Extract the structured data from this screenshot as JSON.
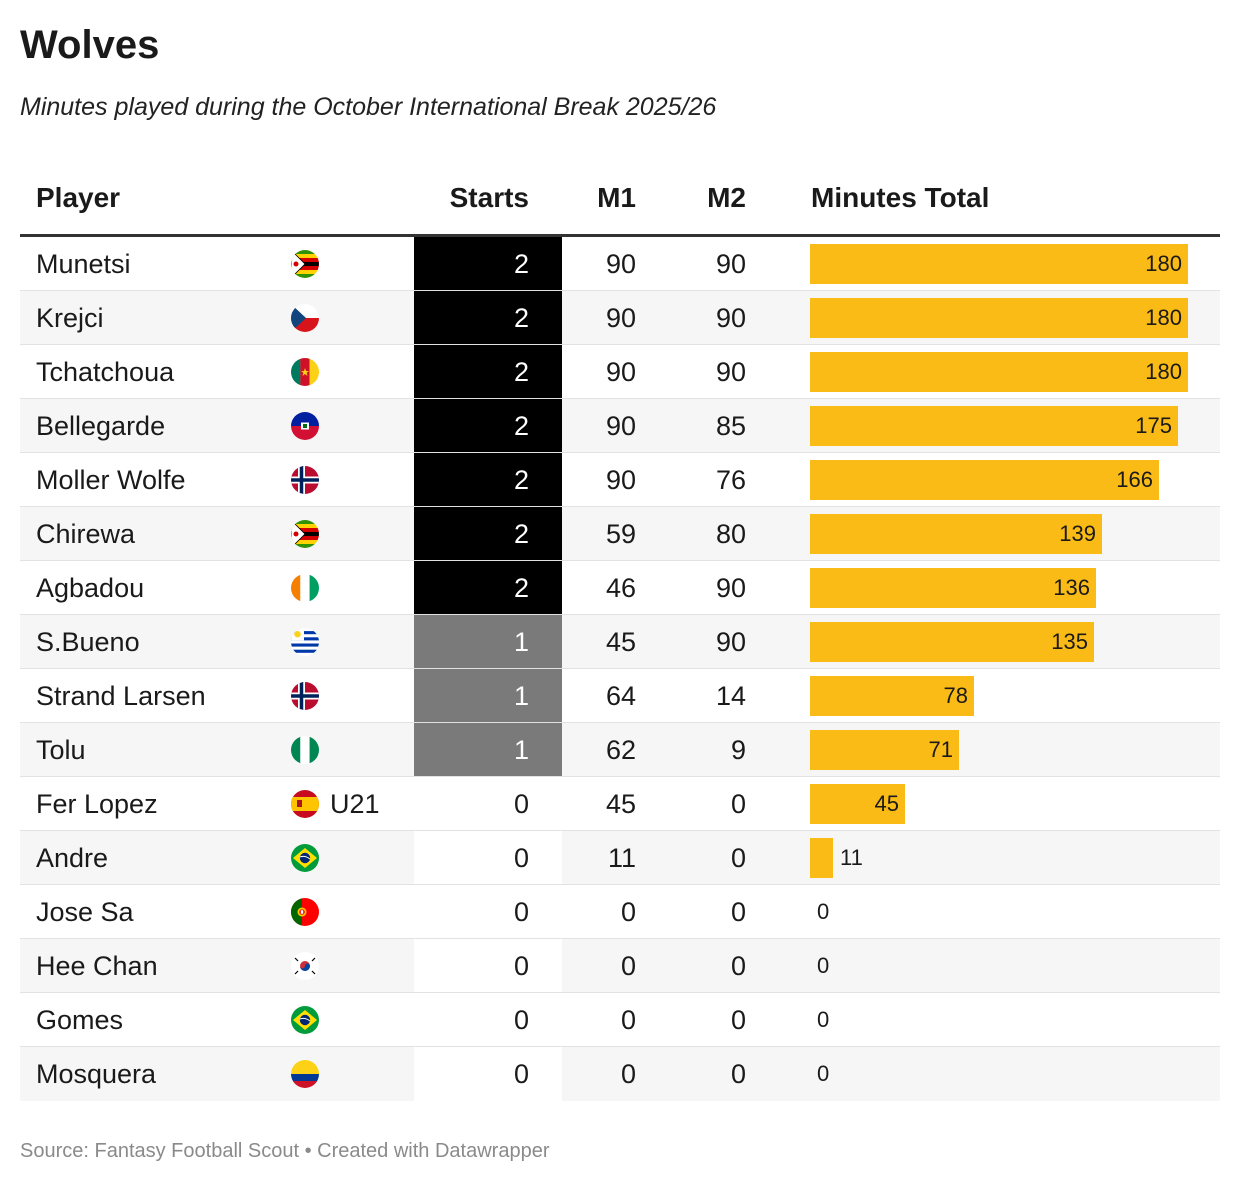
{
  "title": "Wolves",
  "subtitle": "Minutes played during the October International Break 2025/26",
  "footer": "Source: Fantasy Football Scout • Created with Datawrapper",
  "colors": {
    "bar": "#fbbb16",
    "starts_2": "#000000",
    "starts_1": "#7a7a7a",
    "starts_0": "#ffffff"
  },
  "headers": {
    "player": "Player",
    "starts": "Starts",
    "m1": "M1",
    "m2": "M2",
    "total": "Minutes Total"
  },
  "chart_data": {
    "type": "table",
    "max_total": 180,
    "rows": [
      {
        "player": "Munetsi",
        "flag": "zimbabwe-flag-icon",
        "tag": "",
        "starts": 2,
        "m1": 90,
        "m2": 90,
        "total": 180
      },
      {
        "player": "Krejci",
        "flag": "czech-flag-icon",
        "tag": "",
        "starts": 2,
        "m1": 90,
        "m2": 90,
        "total": 180
      },
      {
        "player": "Tchatchoua",
        "flag": "cameroon-flag-icon",
        "tag": "",
        "starts": 2,
        "m1": 90,
        "m2": 90,
        "total": 180
      },
      {
        "player": "Bellegarde",
        "flag": "haiti-flag-icon",
        "tag": "",
        "starts": 2,
        "m1": 90,
        "m2": 85,
        "total": 175
      },
      {
        "player": "Moller Wolfe",
        "flag": "norway-flag-icon",
        "tag": "",
        "starts": 2,
        "m1": 90,
        "m2": 76,
        "total": 166
      },
      {
        "player": "Chirewa",
        "flag": "zimbabwe-flag-icon",
        "tag": "",
        "starts": 2,
        "m1": 59,
        "m2": 80,
        "total": 139
      },
      {
        "player": "Agbadou",
        "flag": "ivory-coast-flag-icon",
        "tag": "",
        "starts": 2,
        "m1": 46,
        "m2": 90,
        "total": 136
      },
      {
        "player": "S.Bueno",
        "flag": "uruguay-flag-icon",
        "tag": "",
        "starts": 1,
        "m1": 45,
        "m2": 90,
        "total": 135
      },
      {
        "player": "Strand Larsen",
        "flag": "norway-flag-icon",
        "tag": "",
        "starts": 1,
        "m1": 64,
        "m2": 14,
        "total": 78
      },
      {
        "player": "Tolu",
        "flag": "nigeria-flag-icon",
        "tag": "",
        "starts": 1,
        "m1": 62,
        "m2": 9,
        "total": 71
      },
      {
        "player": "Fer Lopez",
        "flag": "spain-flag-icon",
        "tag": "U21",
        "starts": 0,
        "m1": 45,
        "m2": 0,
        "total": 45
      },
      {
        "player": "Andre",
        "flag": "brazil-flag-icon",
        "tag": "",
        "starts": 0,
        "m1": 11,
        "m2": 0,
        "total": 11
      },
      {
        "player": "Jose Sa",
        "flag": "portugal-flag-icon",
        "tag": "",
        "starts": 0,
        "m1": 0,
        "m2": 0,
        "total": 0
      },
      {
        "player": "Hee Chan",
        "flag": "south-korea-flag-icon",
        "tag": "",
        "starts": 0,
        "m1": 0,
        "m2": 0,
        "total": 0
      },
      {
        "player": "Gomes",
        "flag": "brazil-flag-icon",
        "tag": "",
        "starts": 0,
        "m1": 0,
        "m2": 0,
        "total": 0
      },
      {
        "player": "Mosquera",
        "flag": "colombia-flag-icon",
        "tag": "",
        "starts": 0,
        "m1": 0,
        "m2": 0,
        "total": 0
      }
    ]
  }
}
